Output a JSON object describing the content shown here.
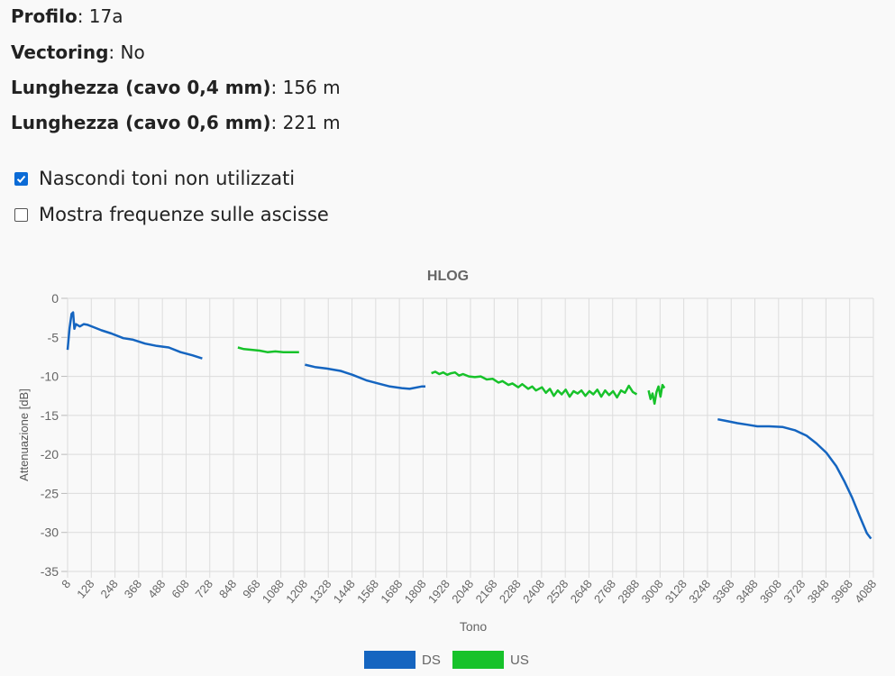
{
  "info": {
    "profilo_label": "Profilo",
    "profilo_value": "17a",
    "vectoring_label": "Vectoring",
    "vectoring_value": "No",
    "lung04_label": "Lunghezza (cavo 0,4 mm)",
    "lung04_value": "156 m",
    "lung06_label": "Lunghezza (cavo 0,6 mm)",
    "lung06_value": "221 m"
  },
  "options": {
    "hide_unused_label": "Nascondi toni non utilizzati",
    "hide_unused_checked": true,
    "show_freq_label": "Mostra frequenze sulle ascisse",
    "show_freq_checked": false
  },
  "chart_data": {
    "type": "line",
    "title": "HLOG",
    "xlabel": "Tono",
    "ylabel": "Attenuazione [dB]",
    "ylim": [
      -35,
      0
    ],
    "yticks": [
      0,
      -5,
      -10,
      -15,
      -20,
      -25,
      -30,
      -35
    ],
    "xticks": [
      "8",
      "128",
      "248",
      "368",
      "488",
      "608",
      "728",
      "848",
      "968",
      "1088",
      "1208",
      "1328",
      "1448",
      "1568",
      "1688",
      "1808",
      "1928",
      "2048",
      "2168",
      "2288",
      "2408",
      "2528",
      "2648",
      "2768",
      "2888",
      "3008",
      "3128",
      "3248",
      "3368",
      "3488",
      "3608",
      "3728",
      "3848",
      "3968",
      "4088"
    ],
    "grid": true,
    "legend_position": "bottom",
    "series": [
      {
        "name": "DS",
        "color": "#1565c0",
        "segments": [
          [
            [
              8,
              -6.6
            ],
            [
              18,
              -3.8
            ],
            [
              28,
              -2.0
            ],
            [
              36,
              -1.8
            ],
            [
              42,
              -3.9
            ],
            [
              50,
              -3.3
            ],
            [
              70,
              -3.6
            ],
            [
              90,
              -3.3
            ],
            [
              110,
              -3.4
            ],
            [
              140,
              -3.7
            ],
            [
              180,
              -4.1
            ],
            [
              230,
              -4.5
            ],
            [
              290,
              -5.1
            ],
            [
              340,
              -5.3
            ],
            [
              400,
              -5.8
            ],
            [
              460,
              -6.1
            ],
            [
              520,
              -6.3
            ],
            [
              580,
              -6.9
            ],
            [
              640,
              -7.3
            ],
            [
              690,
              -7.7
            ]
          ],
          [
            [
              1210,
              -8.5
            ],
            [
              1260,
              -8.8
            ],
            [
              1320,
              -9.0
            ],
            [
              1390,
              -9.3
            ],
            [
              1450,
              -9.8
            ],
            [
              1520,
              -10.5
            ],
            [
              1580,
              -10.9
            ],
            [
              1640,
              -11.3
            ],
            [
              1700,
              -11.5
            ],
            [
              1740,
              -11.6
            ],
            [
              1800,
              -11.3
            ],
            [
              1820,
              -11.3
            ]
          ],
          [
            [
              3300,
              -15.5
            ],
            [
              3340,
              -15.7
            ],
            [
              3400,
              -16.0
            ],
            [
              3450,
              -16.2
            ],
            [
              3500,
              -16.4
            ],
            [
              3560,
              -16.4
            ],
            [
              3630,
              -16.5
            ],
            [
              3690,
              -16.9
            ],
            [
              3750,
              -17.6
            ],
            [
              3800,
              -18.6
            ],
            [
              3850,
              -19.8
            ],
            [
              3900,
              -21.5
            ],
            [
              3940,
              -23.4
            ],
            [
              3980,
              -25.5
            ],
            [
              4020,
              -28.0
            ],
            [
              4055,
              -30.1
            ],
            [
              4076,
              -30.8
            ]
          ]
        ]
      },
      {
        "name": "US",
        "color": "#17c22a",
        "segments": [
          [
            [
              870,
              -6.3
            ],
            [
              900,
              -6.5
            ],
            [
              940,
              -6.6
            ],
            [
              980,
              -6.7
            ],
            [
              1020,
              -6.9
            ],
            [
              1060,
              -6.8
            ],
            [
              1100,
              -6.9
            ],
            [
              1150,
              -6.9
            ],
            [
              1180,
              -6.9
            ]
          ],
          [
            [
              1850,
              -9.6
            ],
            [
              1870,
              -9.4
            ],
            [
              1890,
              -9.7
            ],
            [
              1910,
              -9.5
            ],
            [
              1930,
              -9.8
            ],
            [
              1950,
              -9.6
            ],
            [
              1970,
              -9.5
            ],
            [
              1990,
              -9.9
            ],
            [
              2010,
              -9.7
            ],
            [
              2040,
              -10.0
            ],
            [
              2070,
              -10.1
            ],
            [
              2100,
              -10.0
            ],
            [
              2130,
              -10.4
            ],
            [
              2160,
              -10.3
            ],
            [
              2190,
              -10.8
            ],
            [
              2210,
              -10.6
            ],
            [
              2240,
              -11.1
            ],
            [
              2260,
              -10.9
            ],
            [
              2290,
              -11.4
            ],
            [
              2310,
              -11.0
            ],
            [
              2340,
              -11.6
            ],
            [
              2360,
              -11.3
            ],
            [
              2380,
              -11.8
            ],
            [
              2410,
              -11.4
            ],
            [
              2430,
              -12.1
            ],
            [
              2450,
              -11.6
            ],
            [
              2470,
              -12.5
            ],
            [
              2490,
              -11.8
            ],
            [
              2510,
              -12.3
            ],
            [
              2530,
              -11.7
            ],
            [
              2550,
              -12.6
            ],
            [
              2570,
              -11.9
            ],
            [
              2590,
              -12.2
            ],
            [
              2610,
              -11.8
            ],
            [
              2630,
              -12.5
            ],
            [
              2650,
              -11.9
            ],
            [
              2670,
              -12.3
            ],
            [
              2690,
              -11.7
            ],
            [
              2710,
              -12.6
            ],
            [
              2730,
              -11.8
            ],
            [
              2750,
              -12.4
            ],
            [
              2770,
              -11.9
            ],
            [
              2790,
              -12.7
            ],
            [
              2810,
              -11.8
            ],
            [
              2830,
              -12.1
            ],
            [
              2850,
              -11.2
            ],
            [
              2870,
              -12.0
            ],
            [
              2890,
              -12.3
            ]
          ],
          [
            [
              2950,
              -11.8
            ],
            [
              2960,
              -12.9
            ],
            [
              2970,
              -12.2
            ],
            [
              2980,
              -13.5
            ],
            [
              2990,
              -12.0
            ],
            [
              3000,
              -11.3
            ],
            [
              3010,
              -12.6
            ],
            [
              3020,
              -11.1
            ],
            [
              3030,
              -11.5
            ]
          ]
        ]
      }
    ]
  }
}
